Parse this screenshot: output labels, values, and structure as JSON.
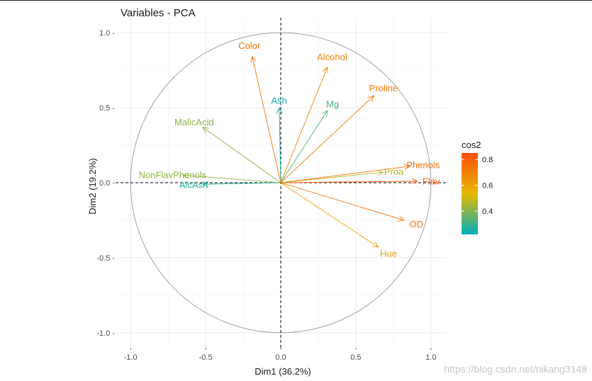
{
  "chart_data": {
    "type": "scatter",
    "subtype": "pca-variable-correlation-circle",
    "title": "Variables - PCA",
    "xlabel": "Dim1 (36.2%)",
    "ylabel": "Dim2 (19.2%)",
    "xlim": [
      -1.1,
      1.1
    ],
    "ylim": [
      -1.1,
      1.1
    ],
    "x_ticks": [
      -1.0,
      -0.5,
      0.0,
      0.5,
      1.0
    ],
    "y_ticks": [
      -1.0,
      -0.5,
      0.0,
      0.5,
      1.0
    ],
    "x_tick_labels": [
      "-1.0",
      "-0.5",
      "0.0",
      "0.5",
      "1.0"
    ],
    "y_tick_labels": [
      "-1.0 -",
      "-0.5 -",
      "0.0 -",
      "0.5 -",
      "1.0 -"
    ],
    "grid": true,
    "unit_circle": true,
    "zero_lines": "dashed",
    "legend": {
      "title": "cos2",
      "placement": "right",
      "ticks": [
        0.4,
        0.6,
        0.8
      ],
      "tick_labels": [
        "0.4",
        "0.6",
        "0.8"
      ],
      "range": [
        0.22,
        0.85
      ],
      "colors": [
        "#00AFBB",
        "#E7B800",
        "#FC4E07"
      ]
    },
    "variables": [
      {
        "name": "Alcohol",
        "x": 0.31,
        "y": 0.77,
        "cos2": 0.69
      },
      {
        "name": "MalicAcid",
        "x": -0.52,
        "y": 0.37,
        "cos2": 0.41
      },
      {
        "name": "Ash",
        "x": -0.01,
        "y": 0.5,
        "cos2": 0.25
      },
      {
        "name": "AlcAsh",
        "x": -0.52,
        "y": -0.01,
        "cos2": 0.27
      },
      {
        "name": "Mg",
        "x": 0.31,
        "y": 0.48,
        "cos2": 0.33
      },
      {
        "name": "Phenols",
        "x": 0.86,
        "y": 0.11,
        "cos2": 0.75
      },
      {
        "name": "Flav",
        "x": 0.91,
        "y": 0.01,
        "cos2": 0.83
      },
      {
        "name": "NonFlavPhenols",
        "x": -0.65,
        "y": 0.05,
        "cos2": 0.42
      },
      {
        "name": "Proa",
        "x": 0.68,
        "y": 0.07,
        "cos2": 0.47
      },
      {
        "name": "Color",
        "x": -0.19,
        "y": 0.84,
        "cos2": 0.74
      },
      {
        "name": "Hue",
        "x": 0.65,
        "y": -0.43,
        "cos2": 0.61
      },
      {
        "name": "OD",
        "x": 0.82,
        "y": -0.25,
        "cos2": 0.74
      },
      {
        "name": "Proline",
        "x": 0.62,
        "y": 0.58,
        "cos2": 0.72
      }
    ]
  },
  "watermark": "https://blog.csdn.net/nikang3148"
}
